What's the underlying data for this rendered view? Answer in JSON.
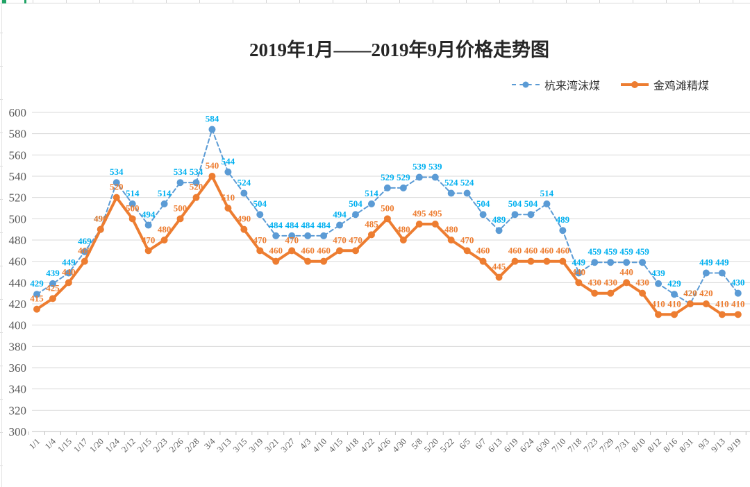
{
  "title": "2019年1月——2019年9月价格走势图",
  "colors": {
    "blue_line": "#5B9BD5",
    "blue_point": "#5B9BD5",
    "blue_data_label": "#00B0F0",
    "orange_line": "#ED7D31",
    "orange_point": "#ED7D31",
    "orange_data_label": "#ED7D31",
    "gridline": "#D9D9D9",
    "axis": "#BFBFBF",
    "tick_text": "#595959",
    "title_text": "#262626",
    "excel_green_mark": "#21A366"
  },
  "chart_data": {
    "type": "line",
    "title": "2019年1月——2019年9月价格走势图",
    "grid": "horizontal",
    "legend_position": "top-right",
    "data_labels": true,
    "ylim": [
      300,
      600
    ],
    "y_ticks": [
      300,
      320,
      340,
      360,
      380,
      400,
      420,
      440,
      460,
      480,
      500,
      520,
      540,
      560,
      580,
      600
    ],
    "categories": [
      "1/1",
      "1/4",
      "1/15",
      "1/17",
      "1/20",
      "1/24",
      "2/12",
      "2/15",
      "2/23",
      "2/26",
      "2/28",
      "3/4",
      "3/13",
      "3/15",
      "3/19",
      "3/21",
      "3/27",
      "4/3",
      "4/10",
      "4/15",
      "4/18",
      "4/22",
      "4/26",
      "4/30",
      "5/8",
      "5/20",
      "5/22",
      "6/5",
      "6/7",
      "6/13",
      "6/19",
      "6/24",
      "6/30",
      "7/10",
      "7/18",
      "7/23",
      "7/29",
      "7/31",
      "8/10",
      "8/12",
      "8/16",
      "8/31",
      "9/3",
      "9/13",
      "9/19"
    ],
    "series": [
      {
        "name": "杭来湾沫煤",
        "line_style": "dashed",
        "color": "#5B9BD5",
        "data_label_color": "#00B0F0",
        "values": [
          429,
          439,
          449,
          469,
          490,
          534,
          514,
          494,
          514,
          534,
          534,
          584,
          544,
          524,
          504,
          484,
          484,
          484,
          484,
          494,
          504,
          514,
          529,
          529,
          539,
          539,
          524,
          524,
          504,
          489,
          504,
          504,
          514,
          489,
          449,
          459,
          459,
          459,
          459,
          439,
          429,
          420,
          449,
          449,
          430
        ]
      },
      {
        "name": "金鸡滩精煤",
        "line_style": "solid",
        "color": "#ED7D31",
        "data_label_color": "#ED7D31",
        "values": [
          415,
          425,
          440,
          460,
          490,
          520,
          500,
          470,
          480,
          500,
          520,
          540,
          510,
          490,
          470,
          460,
          470,
          460,
          460,
          470,
          470,
          485,
          500,
          480,
          495,
          495,
          480,
          470,
          460,
          445,
          460,
          460,
          460,
          460,
          440,
          430,
          430,
          440,
          430,
          410,
          410,
          420,
          420,
          410,
          410
        ]
      }
    ]
  }
}
